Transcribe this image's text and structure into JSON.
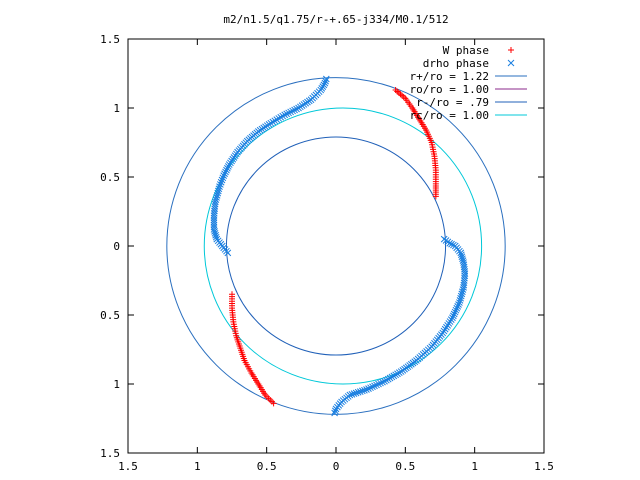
{
  "chart_data": {
    "type": "scatter",
    "title": "m2/n1.5/q1.75/r-+.65-j334/M0.1/512",
    "xlabel": "",
    "ylabel": "",
    "xlim": [
      -1.5,
      1.5
    ],
    "ylim": [
      -1.5,
      1.5
    ],
    "x_ticks": [
      -1.5,
      -1,
      -0.5,
      0,
      0.5,
      1,
      1.5
    ],
    "y_ticks": [
      -1.5,
      -1,
      -0.5,
      0,
      0.5,
      1,
      1.5
    ],
    "x_tick_labels": [
      "1.5",
      "1",
      "0.5",
      "0",
      "0.5",
      "1",
      "1.5"
    ],
    "y_tick_labels": [
      "1.5",
      "1",
      "0.5",
      "0",
      "0.5",
      "1",
      "1.5"
    ],
    "grid": false,
    "legend_position": "top-right",
    "colors": {
      "w_phase": "#ff0000",
      "drho_phase": "#1a7fe0",
      "r_plus": "#2a6fbf",
      "r_o": "#8b2a8b",
      "r_minus": "#2060b8",
      "r_c": "#00c8d8"
    },
    "legend": [
      {
        "key": "w_phase",
        "label": "W phase",
        "symbol": "plus"
      },
      {
        "key": "drho_phase",
        "label": "drho phase",
        "symbol": "cross"
      },
      {
        "key": "r_plus",
        "label": "r+/ro = 1.22",
        "symbol": "line"
      },
      {
        "key": "r_o",
        "label": "ro/ro = 1.00",
        "symbol": "line"
      },
      {
        "key": "r_minus",
        "label": "r-/ro = .79",
        "symbol": "line"
      },
      {
        "key": "r_c",
        "label": "rc/ro = 1.00",
        "symbol": "line"
      }
    ],
    "circles": [
      {
        "key": "r_plus",
        "cx": 0,
        "cy": 0,
        "r": 1.22
      },
      {
        "key": "r_minus",
        "cx": 0,
        "cy": 0,
        "r": 0.79
      },
      {
        "key": "r_c",
        "cx": 0.05,
        "cy": 0.0,
        "r": 1.0
      }
    ],
    "series": [
      {
        "key": "w_phase",
        "segments": [
          [
            [
              0.43,
              1.13
            ],
            [
              0.5,
              1.07
            ],
            [
              0.55,
              1.0
            ],
            [
              0.6,
              0.92
            ],
            [
              0.65,
              0.84
            ],
            [
              0.69,
              0.75
            ],
            [
              0.71,
              0.65
            ],
            [
              0.72,
              0.55
            ],
            [
              0.72,
              0.45
            ],
            [
              0.72,
              0.36
            ]
          ],
          [
            [
              -0.75,
              -0.35
            ],
            [
              -0.75,
              -0.45
            ],
            [
              -0.74,
              -0.55
            ],
            [
              -0.72,
              -0.65
            ],
            [
              -0.69,
              -0.74
            ],
            [
              -0.66,
              -0.83
            ],
            [
              -0.61,
              -0.92
            ],
            [
              -0.56,
              -1.0
            ],
            [
              -0.51,
              -1.08
            ],
            [
              -0.45,
              -1.14
            ]
          ]
        ]
      },
      {
        "key": "drho_phase",
        "segments": [
          [
            [
              -0.07,
              1.21
            ],
            [
              -0.08,
              1.18
            ],
            [
              -0.11,
              1.13
            ],
            [
              -0.18,
              1.06
            ],
            [
              -0.27,
              1.0
            ],
            [
              -0.37,
              0.95
            ],
            [
              -0.47,
              0.89
            ],
            [
              -0.56,
              0.83
            ],
            [
              -0.64,
              0.76
            ],
            [
              -0.71,
              0.68
            ],
            [
              -0.77,
              0.59
            ],
            [
              -0.81,
              0.51
            ],
            [
              -0.84,
              0.43
            ],
            [
              -0.87,
              0.32
            ],
            [
              -0.88,
              0.22
            ],
            [
              -0.88,
              0.12
            ],
            [
              -0.86,
              0.05
            ],
            [
              -0.82,
              0.0
            ],
            [
              -0.78,
              -0.05
            ]
          ],
          [
            [
              0.78,
              0.05
            ],
            [
              0.82,
              0.02
            ],
            [
              0.86,
              0.0
            ],
            [
              0.9,
              -0.05
            ],
            [
              0.92,
              -0.12
            ],
            [
              0.93,
              -0.2
            ],
            [
              0.92,
              -0.3
            ],
            [
              0.89,
              -0.41
            ],
            [
              0.84,
              -0.52
            ],
            [
              0.77,
              -0.63
            ],
            [
              0.69,
              -0.73
            ],
            [
              0.58,
              -0.83
            ],
            [
              0.47,
              -0.91
            ],
            [
              0.35,
              -0.98
            ],
            [
              0.22,
              -1.04
            ],
            [
              0.1,
              -1.08
            ],
            [
              0.04,
              -1.13
            ],
            [
              0.0,
              -1.18
            ],
            [
              -0.01,
              -1.21
            ]
          ]
        ]
      }
    ]
  }
}
